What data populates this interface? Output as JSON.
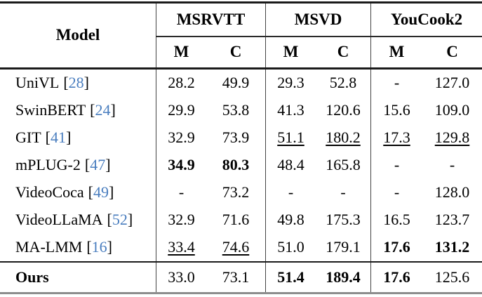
{
  "colors": {
    "citation_blue": "#4a7ebf",
    "rule_dark": "#1a1a1a",
    "divider_gray": "#444444",
    "bottom_rule_gray": "#8d8d8d"
  },
  "table": {
    "header": {
      "model_label": "Model",
      "groups": [
        {
          "label": "MSRVTT",
          "metrics": [
            "M",
            "C"
          ]
        },
        {
          "label": "MSVD",
          "metrics": [
            "M",
            "C"
          ]
        },
        {
          "label": "YouCook2",
          "metrics": [
            "M",
            "C"
          ]
        }
      ]
    },
    "rows": [
      {
        "model": "UniVL",
        "cite": "28",
        "cells": [
          {
            "text": "28.2",
            "style": "plain"
          },
          {
            "text": "49.9",
            "style": "plain"
          },
          {
            "text": "29.3",
            "style": "plain"
          },
          {
            "text": "52.8",
            "style": "plain"
          },
          {
            "text": "-",
            "style": "plain"
          },
          {
            "text": "127.0",
            "style": "plain"
          }
        ]
      },
      {
        "model": "SwinBERT",
        "cite": "24",
        "cells": [
          {
            "text": "29.9",
            "style": "plain"
          },
          {
            "text": "53.8",
            "style": "plain"
          },
          {
            "text": "41.3",
            "style": "plain"
          },
          {
            "text": "120.6",
            "style": "plain"
          },
          {
            "text": "15.6",
            "style": "plain"
          },
          {
            "text": "109.0",
            "style": "plain"
          }
        ]
      },
      {
        "model": "GIT",
        "cite": "41",
        "cells": [
          {
            "text": "32.9",
            "style": "plain"
          },
          {
            "text": "73.9",
            "style": "plain"
          },
          {
            "text": "51.1",
            "style": "underline"
          },
          {
            "text": "180.2",
            "style": "underline"
          },
          {
            "text": "17.3",
            "style": "underline"
          },
          {
            "text": "129.8",
            "style": "underline"
          }
        ]
      },
      {
        "model": "mPLUG-2",
        "cite": "47",
        "cells": [
          {
            "text": "34.9",
            "style": "bold"
          },
          {
            "text": "80.3",
            "style": "bold"
          },
          {
            "text": "48.4",
            "style": "plain"
          },
          {
            "text": "165.8",
            "style": "plain"
          },
          {
            "text": "-",
            "style": "plain"
          },
          {
            "text": "-",
            "style": "plain"
          }
        ]
      },
      {
        "model": "VideoCoca",
        "cite": "49",
        "cells": [
          {
            "text": "-",
            "style": "plain"
          },
          {
            "text": "73.2",
            "style": "plain"
          },
          {
            "text": "-",
            "style": "plain"
          },
          {
            "text": "-",
            "style": "plain"
          },
          {
            "text": "-",
            "style": "plain"
          },
          {
            "text": "128.0",
            "style": "plain"
          }
        ]
      },
      {
        "model": "VideoLLaMA",
        "cite": "52",
        "cells": [
          {
            "text": "32.9",
            "style": "plain"
          },
          {
            "text": "71.6",
            "style": "plain"
          },
          {
            "text": "49.8",
            "style": "plain"
          },
          {
            "text": "175.3",
            "style": "plain"
          },
          {
            "text": "16.5",
            "style": "plain"
          },
          {
            "text": "123.7",
            "style": "plain"
          }
        ]
      },
      {
        "model": "MA-LMM",
        "cite": "16",
        "cells": [
          {
            "text": "33.4",
            "style": "underline"
          },
          {
            "text": "74.6",
            "style": "underline"
          },
          {
            "text": "51.0",
            "style": "plain"
          },
          {
            "text": "179.1",
            "style": "plain"
          },
          {
            "text": "17.6",
            "style": "bold"
          },
          {
            "text": "131.2",
            "style": "bold"
          }
        ]
      }
    ],
    "ours_row": {
      "model": "Ours",
      "cite": null,
      "cells": [
        {
          "text": "33.0",
          "style": "plain"
        },
        {
          "text": "73.1",
          "style": "plain"
        },
        {
          "text": "51.4",
          "style": "bold"
        },
        {
          "text": "189.4",
          "style": "bold"
        },
        {
          "text": "17.6",
          "style": "bold"
        },
        {
          "text": "125.6",
          "style": "plain"
        }
      ]
    }
  }
}
